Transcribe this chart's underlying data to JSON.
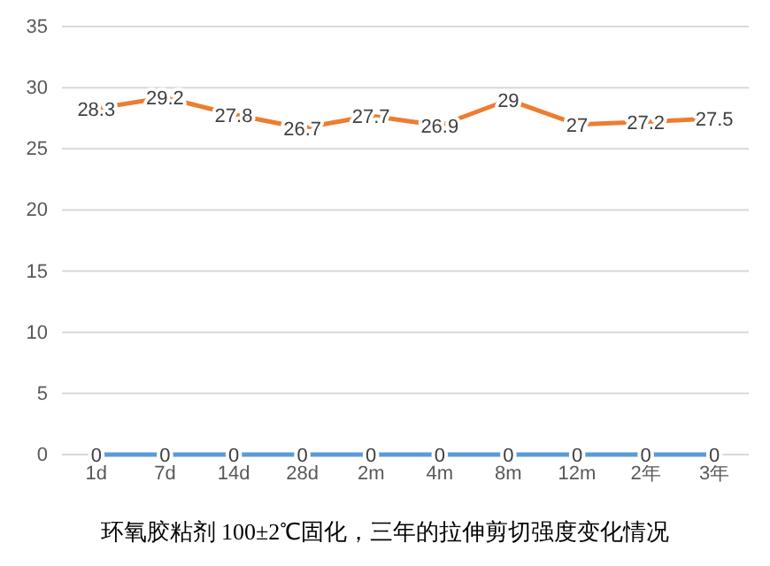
{
  "chart_data": {
    "type": "line",
    "categories": [
      "1d",
      "7d",
      "14d",
      "28d",
      "2m",
      "4m",
      "8m",
      "12m",
      "2年",
      "3年"
    ],
    "series": [
      {
        "color": "#ed7d31",
        "values": [
          28.3,
          29.2,
          27.8,
          26.7,
          27.7,
          26.9,
          29,
          27,
          27.2,
          27.5
        ]
      },
      {
        "color": "#5b9bd5",
        "values": [
          0,
          0,
          0,
          0,
          0,
          0,
          0,
          0,
          0,
          0
        ]
      }
    ],
    "ylim": [
      0,
      35
    ],
    "yticks": [
      0,
      5,
      10,
      15,
      20,
      25,
      30,
      35
    ],
    "grid": "y",
    "data_labels": true,
    "marker": "none",
    "annotations": [
      "环氧胶粘剂 100±2℃固化，三年的拉伸剪切强度变化情况"
    ]
  }
}
